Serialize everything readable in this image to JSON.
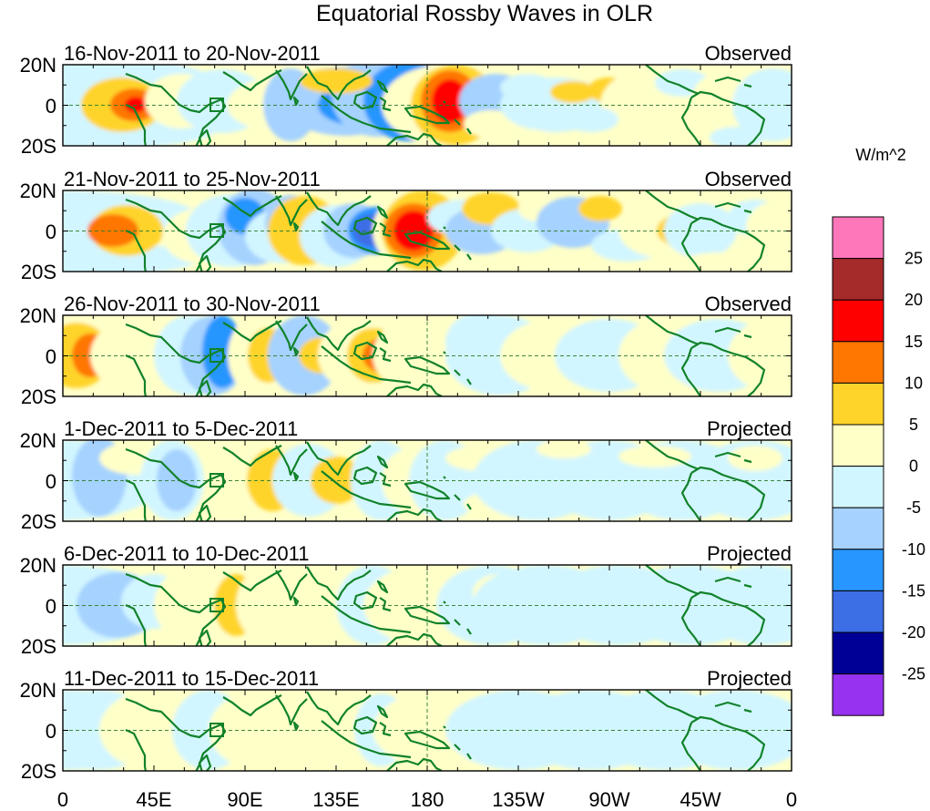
{
  "title": "Equatorial Rossby Waves in OLR",
  "units": "W/m^2",
  "lat_ticks": [
    "20N",
    "0",
    "20S"
  ],
  "lon_ticks": [
    "0",
    "45E",
    "90E",
    "135E",
    "180",
    "135W",
    "90W",
    "45W",
    "0"
  ],
  "colorbar_labels": [
    "25",
    "20",
    "15",
    "10",
    "5",
    "0",
    "-5",
    "-10",
    "-15",
    "-20",
    "-25"
  ],
  "colors": {
    "levels": [
      "#ff77bb",
      "#a52a2a",
      "#ff0000",
      "#ff7700",
      "#ffd42a",
      "#ffffc8",
      "#d2f6ff",
      "#a5d2ff",
      "#2896ff",
      "#3c6ee6",
      "#000096",
      "#9632f0"
    ],
    "coast": "#11822a",
    "grid": "#2a7a2a"
  },
  "panels": [
    {
      "dates": "16-Nov-2011 to 20-Nov-2011",
      "type": "Observed"
    },
    {
      "dates": "21-Nov-2011 to 25-Nov-2011",
      "type": "Observed"
    },
    {
      "dates": "26-Nov-2011 to 30-Nov-2011",
      "type": "Observed"
    },
    {
      "dates": "1-Dec-2011 to 5-Dec-2011",
      "type": "Projected"
    },
    {
      "dates": "6-Dec-2011 to 10-Dec-2011",
      "type": "Projected"
    },
    {
      "dates": "11-Dec-2011 to 15-Dec-2011",
      "type": "Projected"
    }
  ]
}
